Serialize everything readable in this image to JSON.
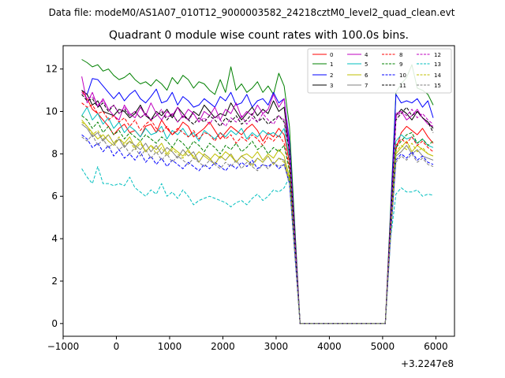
{
  "suptitle": "Data file: modeM0/AS1A07_010T12_9000003582_24218cztM0_level2_quad_clean.evt",
  "chart_data": {
    "type": "line",
    "title": "Quadrant 0 module wise count rates with 100.0s bins.",
    "xlabel": "",
    "ylabel": "",
    "x_offset_label": "+3.2247e8",
    "xlim": [
      -1000,
      6350
    ],
    "ylim": [
      -0.6,
      13.1
    ],
    "xticks": [
      -1000,
      0,
      1000,
      2000,
      3000,
      4000,
      5000,
      6000
    ],
    "xtick_labels": [
      "−1000",
      "0",
      "1000",
      "2000",
      "3000",
      "4000",
      "5000",
      "6000"
    ],
    "yticks": [
      0,
      2,
      4,
      6,
      8,
      10,
      12
    ],
    "ytick_labels": [
      "0",
      "2",
      "4",
      "6",
      "8",
      "10",
      "12"
    ],
    "legend_position": "top-right",
    "x_segments": {
      "active_1": {
        "start": -650,
        "step": 100,
        "count": 40
      },
      "gap_zero": [
        3450,
        5050
      ],
      "active_2": {
        "start": 5150,
        "step": 100,
        "count": 9
      }
    },
    "series": [
      {
        "name": "0",
        "color": "#ff0000",
        "style": "solid",
        "seg1": [
          11.0,
          10.6,
          10.1,
          9.9,
          9.6,
          9.3,
          8.9,
          9.2,
          9.4,
          9.0,
          9.1,
          8.8,
          9.3,
          9.4,
          9.0,
          9.6,
          9.2,
          8.9,
          9.1,
          9.5,
          9.3,
          8.8,
          9.0,
          9.2,
          9.5,
          9.1,
          8.7,
          9.0,
          9.3,
          9.1,
          8.9,
          9.2,
          9.4,
          9.1,
          8.6,
          9.0,
          8.8,
          9.2,
          8.9,
          7.6
        ],
        "seg2": [
          4.6,
          8.2,
          9.0,
          9.3,
          9.1,
          8.9,
          9.2,
          8.8,
          8.5
        ]
      },
      {
        "name": "1",
        "color": "#008000",
        "style": "solid",
        "seg1": [
          12.45,
          12.3,
          12.1,
          12.2,
          11.9,
          12.0,
          11.7,
          11.5,
          11.6,
          11.8,
          11.5,
          11.3,
          11.4,
          11.2,
          11.5,
          11.3,
          11.0,
          11.6,
          11.3,
          11.7,
          11.5,
          11.1,
          11.4,
          11.3,
          11.0,
          10.8,
          11.5,
          10.9,
          12.1,
          11.0,
          11.3,
          10.9,
          11.1,
          11.4,
          10.9,
          11.2,
          10.8,
          11.8,
          11.2,
          9.3
        ],
        "seg2": [
          5.4,
          10.9,
          11.3,
          11.6,
          12.2,
          11.1,
          11.0,
          10.8,
          10.3
        ]
      },
      {
        "name": "2",
        "color": "#0000ff",
        "style": "solid",
        "seg1": [
          11.0,
          10.8,
          11.55,
          11.5,
          11.2,
          10.9,
          10.6,
          10.9,
          10.5,
          10.8,
          11.0,
          10.6,
          10.4,
          10.7,
          11.05,
          10.4,
          10.5,
          10.9,
          10.3,
          10.7,
          10.5,
          10.2,
          10.3,
          10.6,
          10.4,
          10.2,
          10.7,
          10.5,
          10.9,
          10.3,
          10.4,
          10.8,
          10.2,
          10.5,
          10.6,
          10.3,
          10.9,
          10.4,
          10.6,
          8.6
        ],
        "seg2": [
          5.1,
          10.8,
          10.4,
          10.5,
          10.4,
          10.6,
          10.2,
          10.5,
          9.7
        ]
      },
      {
        "name": "3",
        "color": "#000000",
        "style": "solid",
        "seg1": [
          11.0,
          10.8,
          10.3,
          10.5,
          10.0,
          9.9,
          9.8,
          10.1,
          10.0,
          9.7,
          9.9,
          10.3,
          9.8,
          9.6,
          10.0,
          9.8,
          10.1,
          9.7,
          10.2,
          9.9,
          9.6,
          10.0,
          9.8,
          10.3,
          10.0,
          9.7,
          9.9,
          9.8,
          10.4,
          10.0,
          9.6,
          9.9,
          10.2,
          9.8,
          10.1,
          9.9,
          10.5,
          10.0,
          10.2,
          8.0
        ],
        "seg2": [
          4.9,
          9.8,
          10.1,
          9.9,
          9.6,
          10.0,
          9.7,
          9.5,
          9.2
        ]
      },
      {
        "name": "4",
        "color": "#bf00bf",
        "style": "solid",
        "seg1": [
          11.65,
          10.4,
          10.9,
          10.2,
          10.6,
          10.1,
          9.8,
          9.6,
          10.3,
          9.9,
          9.7,
          10.2,
          9.8,
          10.4,
          9.9,
          9.6,
          10.0,
          9.8,
          10.2,
          9.7,
          10.1,
          9.9,
          9.5,
          10.0,
          9.8,
          10.2,
          9.6,
          10.1,
          9.9,
          10.4,
          9.7,
          10.0,
          9.8,
          10.3,
          9.9,
          10.1,
          10.8,
          10.2,
          10.6,
          8.3
        ],
        "seg2": [
          4.8,
          9.9,
          10.0,
          9.6,
          9.8,
          10.1,
          9.7,
          9.4,
          9.3
        ]
      },
      {
        "name": "5",
        "color": "#00bfbf",
        "style": "solid",
        "seg1": [
          9.8,
          10.2,
          9.6,
          9.9,
          9.4,
          9.7,
          9.2,
          9.5,
          9.0,
          9.3,
          9.1,
          8.8,
          9.2,
          8.9,
          9.0,
          9.3,
          8.7,
          9.1,
          8.9,
          9.2,
          8.8,
          9.0,
          8.6,
          9.1,
          8.9,
          8.7,
          9.0,
          8.8,
          9.1,
          8.9,
          9.2,
          8.7,
          9.0,
          8.8,
          9.1,
          8.9,
          9.0,
          8.8,
          9.2,
          7.8
        ],
        "seg2": [
          4.5,
          8.6,
          8.9,
          8.7,
          8.8,
          8.5,
          8.7,
          8.4,
          8.3
        ]
      },
      {
        "name": "6",
        "color": "#bfbf00",
        "style": "solid",
        "seg1": [
          9.6,
          9.3,
          9.0,
          8.7,
          8.9,
          8.6,
          8.4,
          8.7,
          8.5,
          8.8,
          8.3,
          8.6,
          8.1,
          8.4,
          8.2,
          8.5,
          8.0,
          8.3,
          8.1,
          7.9,
          8.2,
          7.8,
          8.1,
          7.9,
          7.7,
          8.0,
          7.8,
          8.1,
          7.9,
          7.6,
          7.9,
          8.0,
          7.8,
          8.1,
          7.7,
          8.0,
          7.8,
          8.2,
          7.9,
          6.9
        ],
        "seg2": [
          4.4,
          8.0,
          8.3,
          8.6,
          8.1,
          8.4,
          8.2,
          8.0,
          7.9
        ]
      },
      {
        "name": "7",
        "color": "#808080",
        "style": "solid",
        "seg1": [
          9.4,
          9.2,
          8.8,
          9.0,
          8.6,
          8.9,
          8.5,
          8.7,
          8.3,
          8.6,
          8.4,
          8.2,
          8.5,
          8.1,
          8.4,
          8.0,
          8.3,
          8.1,
          7.8,
          8.2,
          7.9,
          8.1,
          7.6,
          8.0,
          7.8,
          7.5,
          7.9,
          7.7,
          8.0,
          7.6,
          7.9,
          7.7,
          7.5,
          7.8,
          7.6,
          7.9,
          7.5,
          7.8,
          7.7,
          6.7
        ],
        "seg2": [
          4.2,
          7.9,
          8.1,
          8.4,
          8.0,
          8.2,
          7.9,
          7.8,
          7.7
        ]
      },
      {
        "name": "8",
        "color": "#ff0000",
        "style": "dashed",
        "seg1": [
          10.4,
          10.2,
          10.3,
          9.9,
          10.0,
          9.6,
          9.8,
          9.5,
          9.7,
          9.3,
          9.6,
          9.1,
          9.4,
          9.6,
          9.2,
          9.0,
          9.3,
          8.9,
          9.2,
          9.0,
          8.8,
          9.1,
          8.7,
          9.0,
          8.9,
          8.6,
          9.0,
          8.7,
          8.9,
          8.5,
          8.8,
          8.6,
          8.9,
          8.7,
          8.4,
          8.8,
          8.6,
          8.9,
          8.5,
          7.4
        ],
        "seg2": [
          4.3,
          8.4,
          8.7,
          8.5,
          8.8,
          8.4,
          8.6,
          8.3,
          8.1
        ]
      },
      {
        "name": "9",
        "color": "#008000",
        "style": "dashed",
        "seg1": [
          9.8,
          9.6,
          9.2,
          9.5,
          9.0,
          9.3,
          8.9,
          9.1,
          8.7,
          9.0,
          8.8,
          8.6,
          8.9,
          8.7,
          8.5,
          8.8,
          8.6,
          8.3,
          8.7,
          8.5,
          8.2,
          8.6,
          8.4,
          8.1,
          8.5,
          8.3,
          8.0,
          8.4,
          8.2,
          8.5,
          8.1,
          8.3,
          8.6,
          8.2,
          8.4,
          8.0,
          8.3,
          8.1,
          8.4,
          7.2
        ],
        "seg2": [
          4.4,
          8.3,
          8.6,
          8.9,
          9.0,
          8.5,
          8.7,
          8.4,
          8.6
        ]
      },
      {
        "name": "10",
        "color": "#0000ff",
        "style": "dashed",
        "seg1": [
          8.9,
          8.7,
          8.3,
          8.5,
          8.1,
          8.4,
          7.9,
          8.2,
          7.8,
          8.0,
          7.7,
          8.1,
          7.6,
          7.9,
          7.5,
          7.8,
          7.4,
          7.7,
          7.5,
          7.3,
          7.6,
          7.4,
          7.2,
          7.5,
          7.3,
          7.6,
          7.4,
          7.2,
          7.5,
          7.3,
          7.6,
          7.4,
          7.7,
          7.3,
          7.5,
          7.4,
          7.6,
          7.3,
          7.5,
          6.6
        ],
        "seg2": [
          4.1,
          7.7,
          8.0,
          7.8,
          8.1,
          7.7,
          7.9,
          7.6,
          7.5
        ]
      },
      {
        "name": "11",
        "color": "#000000",
        "style": "dashed",
        "seg1": [
          10.8,
          10.5,
          10.6,
          10.2,
          10.4,
          10.0,
          10.3,
          9.9,
          10.1,
          9.8,
          10.0,
          9.7,
          9.9,
          9.6,
          9.8,
          10.0,
          9.6,
          9.9,
          9.5,
          9.8,
          9.6,
          9.4,
          9.7,
          9.5,
          9.8,
          9.6,
          9.3,
          9.7,
          9.5,
          9.8,
          9.4,
          9.6,
          9.9,
          9.5,
          9.7,
          9.4,
          9.6,
          9.8,
          9.5,
          8.1
        ],
        "seg2": [
          4.7,
          9.6,
          9.9,
          10.2,
          9.8,
          10.0,
          9.7,
          9.5,
          9.0
        ]
      },
      {
        "name": "12",
        "color": "#bf00bf",
        "style": "dashed",
        "seg1": [
          10.9,
          10.6,
          10.7,
          10.3,
          10.5,
          10.1,
          10.3,
          9.9,
          10.2,
          9.8,
          10.0,
          9.7,
          9.9,
          9.6,
          9.8,
          10.1,
          9.7,
          9.9,
          9.5,
          9.8,
          9.6,
          9.9,
          9.5,
          9.7,
          9.4,
          9.8,
          9.6,
          9.3,
          9.7,
          9.5,
          9.8,
          9.4,
          9.7,
          9.5,
          9.9,
          9.6,
          9.4,
          9.8,
          9.6,
          8.2
        ],
        "seg2": [
          4.8,
          9.7,
          10.0,
          9.8,
          10.1,
          9.7,
          9.9,
          9.6,
          9.4
        ]
      },
      {
        "name": "13",
        "color": "#00bfbf",
        "style": "dashed",
        "seg1": [
          7.3,
          6.9,
          6.6,
          7.4,
          6.6,
          6.6,
          6.5,
          6.6,
          6.5,
          6.9,
          6.4,
          6.2,
          6.0,
          6.3,
          6.1,
          6.6,
          6.0,
          6.2,
          5.9,
          6.3,
          6.0,
          5.6,
          5.8,
          5.9,
          6.0,
          5.9,
          5.8,
          5.7,
          5.5,
          5.7,
          5.8,
          5.6,
          5.9,
          6.1,
          5.8,
          6.0,
          6.3,
          6.2,
          6.4,
          6.9
        ],
        "seg2": [
          4.0,
          6.1,
          6.4,
          6.2,
          6.2,
          6.3,
          6.0,
          6.1,
          6.05
        ]
      },
      {
        "name": "14",
        "color": "#bfbf00",
        "style": "dashed",
        "seg1": [
          9.5,
          9.3,
          8.9,
          9.1,
          8.7,
          8.9,
          8.5,
          8.8,
          8.4,
          8.6,
          8.2,
          8.5,
          8.1,
          8.4,
          8.0,
          8.3,
          7.9,
          8.2,
          8.0,
          7.8,
          8.1,
          7.9,
          7.6,
          8.0,
          7.8,
          7.5,
          7.9,
          7.7,
          8.0,
          7.6,
          7.9,
          7.7,
          7.4,
          7.8,
          7.6,
          7.9,
          7.5,
          7.8,
          7.6,
          6.8
        ],
        "seg2": [
          4.3,
          8.1,
          8.4,
          8.2,
          8.5,
          8.1,
          8.3,
          8.0,
          7.9
        ]
      },
      {
        "name": "15",
        "color": "#808080",
        "style": "dashed",
        "seg1": [
          8.8,
          8.6,
          8.9,
          8.4,
          8.7,
          8.3,
          8.5,
          8.2,
          8.4,
          8.0,
          8.3,
          7.9,
          8.2,
          7.8,
          8.1,
          7.7,
          8.0,
          7.6,
          7.9,
          7.7,
          7.5,
          7.8,
          7.6,
          7.4,
          7.7,
          7.5,
          7.3,
          7.6,
          7.4,
          7.7,
          7.3,
          7.6,
          7.4,
          7.2,
          7.5,
          7.3,
          7.6,
          7.4,
          7.5,
          6.6
        ],
        "seg2": [
          4.0,
          7.6,
          7.9,
          7.7,
          8.0,
          7.6,
          7.8,
          7.5,
          7.4
        ]
      }
    ]
  }
}
